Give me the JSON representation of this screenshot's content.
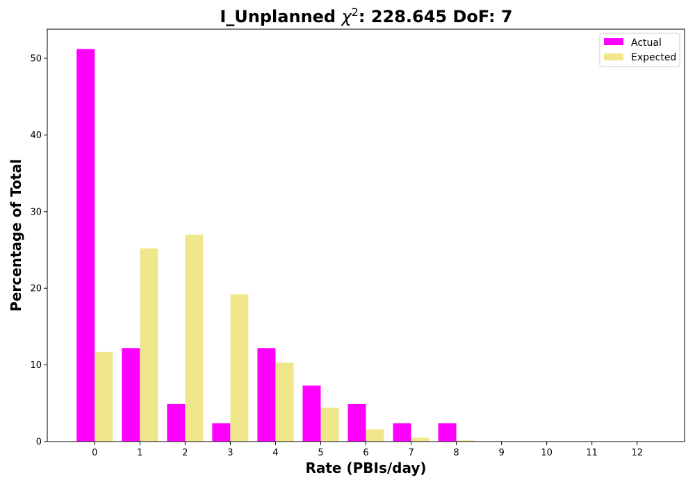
{
  "chart_data": {
    "type": "bar",
    "title_prefix": "I_Unplanned ",
    "title_symbol": "χ",
    "title_superscript": "2",
    "title_suffix": ": 228.645 DoF: 7",
    "xlabel": "Rate (PBIs/day)",
    "ylabel": "Percentage of Total",
    "categories": [
      "0",
      "1",
      "2",
      "3",
      "4",
      "5",
      "6",
      "7",
      "8",
      "9",
      "10",
      "11",
      "12"
    ],
    "x": [
      0,
      1,
      2,
      3,
      4,
      5,
      6,
      7,
      8,
      9,
      10,
      11,
      12
    ],
    "series": [
      {
        "name": "Actual",
        "color": "#ff00ff",
        "values": [
          51.2,
          12.2,
          4.9,
          2.4,
          12.2,
          7.3,
          4.9,
          2.4,
          2.4,
          0,
          0,
          0,
          0
        ]
      },
      {
        "name": "Expected",
        "color": "#f0e68c",
        "values": [
          11.7,
          25.2,
          27.0,
          19.2,
          10.3,
          4.4,
          1.6,
          0.5,
          0.15,
          0.04,
          0,
          0,
          0
        ]
      }
    ],
    "xlim": [
      -1.05,
      13.05
    ],
    "ylim": [
      0,
      53.8
    ],
    "yticks": [
      0,
      10,
      20,
      30,
      40,
      50
    ],
    "legend": "top-right",
    "grid": false
  }
}
